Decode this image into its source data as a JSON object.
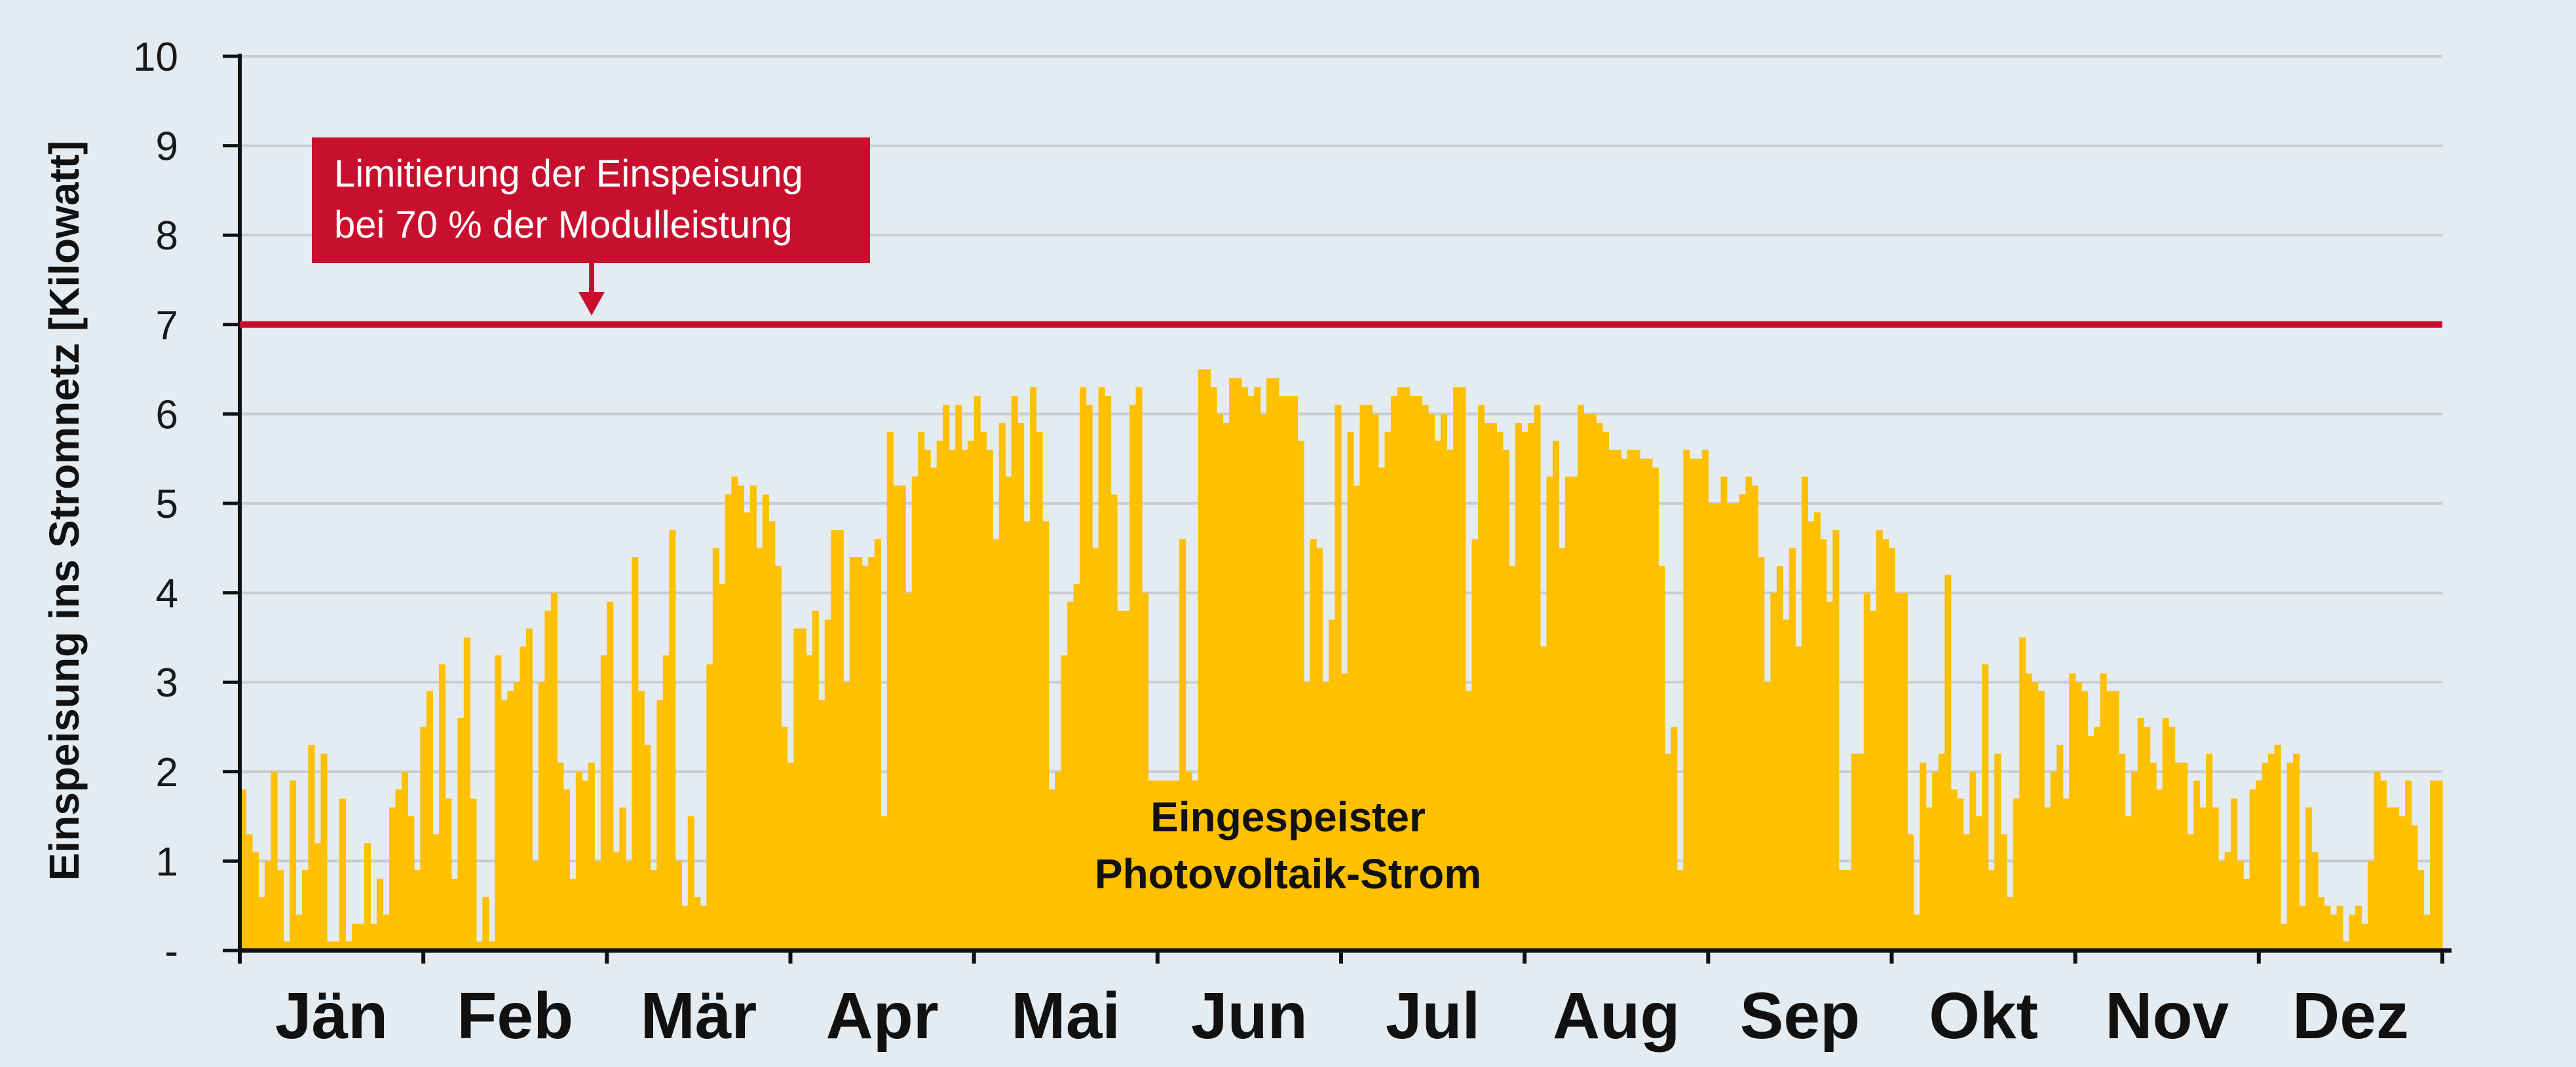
{
  "chart_data": {
    "type": "bar",
    "ylabel": "Einspeisung ins Stromnetz [Kilowatt]",
    "xlabel": "",
    "ylim": [
      0,
      10
    ],
    "y_ticks": [
      "-",
      "1",
      "2",
      "3",
      "4",
      "5",
      "6",
      "7",
      "8",
      "9",
      "10"
    ],
    "grid": true,
    "months": [
      "Jän",
      "Feb",
      "Mär",
      "Apr",
      "Mai",
      "Jun",
      "Jul",
      "Aug",
      "Sep",
      "Okt",
      "Nov",
      "Dez"
    ],
    "series": [
      {
        "name": "Eingespeister Photovoltaik-Strom",
        "unit": "kW",
        "values": [
          1.8,
          1.3,
          1.1,
          0.6,
          1.0,
          2.0,
          0.9,
          0.1,
          1.9,
          0.4,
          0.9,
          2.3,
          1.2,
          2.2,
          0.1,
          0.1,
          1.7,
          0.1,
          0.3,
          0.3,
          1.2,
          0.3,
          0.8,
          0.4,
          1.6,
          1.8,
          2.0,
          1.5,
          0.9,
          2.5,
          2.9,
          1.3,
          3.2,
          1.7,
          0.8,
          2.6,
          3.5,
          1.7,
          0.1,
          0.6,
          0.1,
          3.3,
          2.8,
          2.9,
          3.0,
          3.4,
          3.6,
          1.0,
          3.0,
          3.8,
          4.0,
          2.1,
          1.8,
          0.8,
          2.0,
          1.9,
          2.1,
          1.0,
          3.3,
          3.9,
          1.1,
          1.6,
          1.0,
          4.4,
          2.9,
          2.3,
          0.9,
          2.8,
          3.3,
          4.7,
          1.0,
          0.5,
          1.5,
          0.6,
          0.5,
          3.2,
          4.5,
          4.1,
          5.1,
          5.3,
          5.2,
          4.9,
          5.2,
          4.5,
          5.1,
          4.8,
          4.3,
          2.5,
          2.1,
          3.6,
          3.6,
          3.3,
          3.8,
          2.8,
          3.7,
          4.7,
          4.7,
          3.0,
          4.4,
          4.4,
          4.3,
          4.4,
          4.6,
          1.5,
          5.8,
          5.2,
          5.2,
          4.0,
          5.3,
          5.8,
          5.6,
          5.4,
          5.7,
          6.1,
          5.6,
          6.1,
          5.6,
          5.7,
          6.2,
          5.8,
          5.6,
          4.6,
          5.9,
          5.3,
          6.2,
          5.9,
          4.8,
          6.3,
          5.8,
          4.8,
          1.8,
          2.0,
          3.3,
          3.9,
          4.1,
          6.3,
          6.1,
          4.5,
          6.3,
          6.2,
          5.1,
          3.8,
          3.8,
          6.1,
          6.3,
          4.0,
          1.9,
          1.9,
          1.9,
          1.9,
          1.9,
          4.6,
          2.0,
          1.9,
          6.5,
          6.5,
          6.3,
          6.0,
          5.9,
          6.4,
          6.4,
          6.3,
          6.2,
          6.3,
          6.0,
          6.4,
          6.4,
          6.2,
          6.2,
          6.2,
          5.7,
          3.0,
          4.6,
          4.5,
          3.0,
          3.7,
          6.1,
          3.1,
          5.8,
          5.2,
          6.1,
          6.1,
          6.0,
          5.4,
          5.8,
          6.2,
          6.3,
          6.3,
          6.2,
          6.2,
          6.1,
          6.0,
          5.7,
          6.0,
          5.6,
          6.3,
          6.3,
          2.9,
          4.6,
          6.1,
          5.9,
          5.9,
          5.8,
          5.6,
          4.3,
          5.9,
          5.8,
          5.9,
          6.1,
          3.4,
          5.3,
          5.7,
          4.5,
          5.3,
          5.3,
          6.1,
          6.0,
          6.0,
          5.9,
          5.8,
          5.6,
          5.6,
          5.5,
          5.6,
          5.6,
          5.5,
          5.5,
          5.4,
          4.3,
          2.2,
          2.5,
          0.9,
          5.6,
          5.5,
          5.5,
          5.6,
          5.0,
          5.0,
          5.3,
          5.0,
          5.0,
          5.1,
          5.3,
          5.2,
          4.4,
          3.0,
          4.0,
          4.3,
          3.7,
          4.5,
          3.4,
          5.3,
          4.8,
          4.9,
          4.6,
          3.9,
          4.7,
          0.9,
          0.9,
          2.2,
          2.2,
          4.0,
          3.8,
          4.7,
          4.6,
          4.5,
          4.0,
          4.0,
          1.3,
          0.4,
          2.1,
          1.6,
          2.0,
          2.2,
          4.2,
          1.8,
          1.7,
          1.3,
          2.0,
          1.5,
          3.2,
          0.9,
          2.2,
          1.3,
          0.6,
          1.7,
          3.5,
          3.1,
          3.0,
          2.9,
          1.6,
          2.0,
          2.3,
          1.7,
          3.1,
          3.0,
          2.9,
          2.4,
          2.5,
          3.1,
          2.9,
          2.9,
          2.2,
          1.5,
          2.0,
          2.6,
          2.5,
          2.1,
          1.8,
          2.6,
          2.5,
          2.1,
          2.1,
          1.3,
          1.9,
          1.6,
          2.2,
          1.6,
          1.0,
          1.1,
          1.7,
          1.0,
          0.8,
          1.8,
          1.9,
          2.1,
          2.2,
          2.3,
          0.3,
          2.1,
          2.2,
          0.5,
          1.6,
          1.1,
          0.6,
          0.5,
          0.4,
          0.5,
          0.1,
          0.4,
          0.5,
          0.3,
          1.0,
          2.0,
          1.9,
          1.6,
          1.6,
          1.5,
          1.9,
          1.4,
          0.9,
          0.4,
          1.9,
          1.9
        ]
      }
    ],
    "reference_line": {
      "value": 7,
      "label_line1": "Limitierung der Einspeisung",
      "label_line2": "bei 70 % der Modulleistung",
      "color": "#c8102e"
    },
    "colors": {
      "bars": "#ffc000",
      "limit": "#c8102e",
      "grid": "#c7ccd1",
      "axis": "#111111",
      "background": "#e4ebf1"
    },
    "series_label_line1": "Eingespeister",
    "series_label_line2": "Photovoltaik-Strom"
  }
}
